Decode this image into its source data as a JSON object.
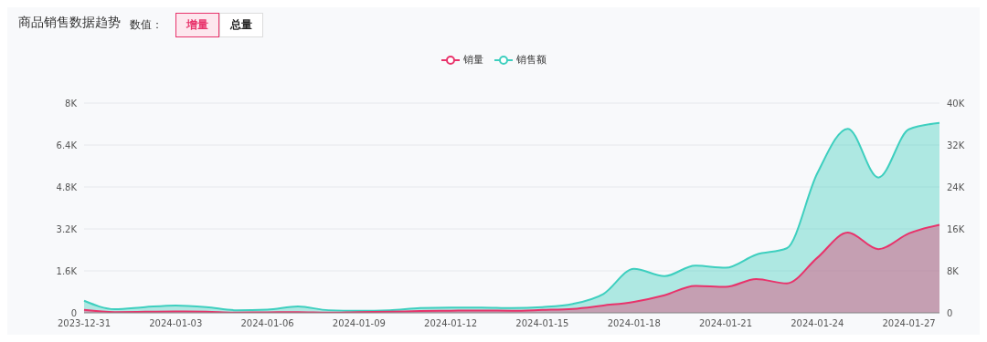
{
  "chart_data": {
    "type": "area",
    "title": "商品销售数据趋势",
    "annotations": [
      "数值：",
      "增量",
      "总量"
    ],
    "categories": [
      "2023-12-31",
      null,
      null,
      "2024-01-03",
      null,
      null,
      "2024-01-06",
      null,
      null,
      "2024-01-09",
      null,
      null,
      "2024-01-12",
      null,
      null,
      "2024-01-15",
      null,
      null,
      "2024-01-18",
      null,
      null,
      "2024-01-21",
      null,
      null,
      "2024-01-24",
      null,
      null,
      "2024-01-27",
      null
    ],
    "series": [
      {
        "name": "销量",
        "color": "#e8336b",
        "values": [
          110,
          30,
          40,
          50,
          40,
          10,
          20,
          30,
          10,
          30,
          40,
          70,
          80,
          90,
          80,
          110,
          150,
          280,
          420,
          670,
          1030,
          990,
          1290,
          1120,
          2100,
          3060,
          2430,
          3030,
          3360
        ]
      },
      {
        "name": "销售额",
        "color": "#3ecfbf",
        "axis": "y2",
        "values": [
          2300,
          700,
          1100,
          1400,
          1100,
          500,
          600,
          1200,
          500,
          400,
          500,
          900,
          1000,
          1000,
          900,
          1100,
          1700,
          3600,
          8400,
          7000,
          9000,
          8600,
          11100,
          12300,
          26600,
          35100,
          25800,
          35000,
          36200
        ]
      }
    ],
    "ylim": [
      0,
      8000
    ],
    "yticks": [
      0,
      {
        "value": 1600,
        "label": "1.6K"
      },
      {
        "value": 3200,
        "label": "3.2K"
      },
      {
        "value": 4800,
        "label": "4.8K"
      },
      {
        "value": 6400,
        "label": "6.4K"
      },
      {
        "value": 8000,
        "label": "8K"
      }
    ],
    "y2lim": [
      0,
      40000
    ],
    "y2ticks": [
      0,
      {
        "value": 8000,
        "label": "8K"
      },
      {
        "value": 16000,
        "label": "16K"
      },
      {
        "value": 24000,
        "label": "24K"
      },
      {
        "value": 32000,
        "label": "32K"
      },
      {
        "value": 40000,
        "label": "40K"
      }
    ],
    "grid": "y",
    "legend": "top",
    "marker": "none",
    "line_style": "solid"
  }
}
